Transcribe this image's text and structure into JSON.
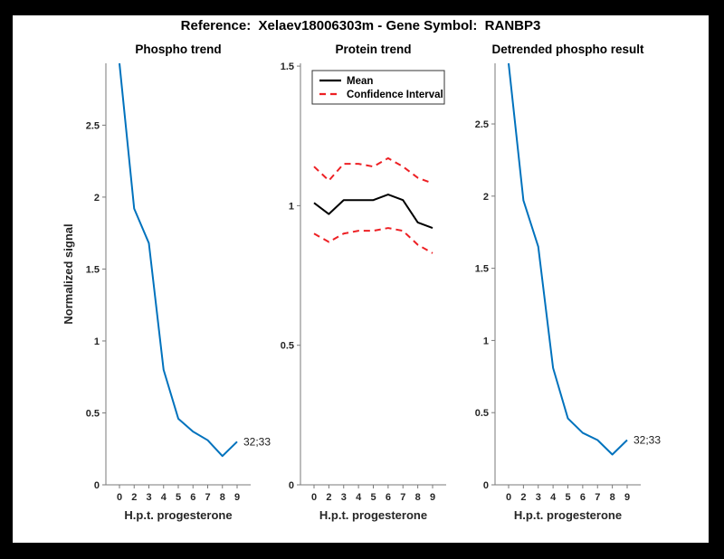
{
  "figure": {
    "title": "Reference:  Xelaev18006303m - Gene Symbol:  RANBP3"
  },
  "colors": {
    "blue": "#0072BD",
    "red": "#ed2024",
    "black": "#000000",
    "axis": "#7a7a7a",
    "tick_label": "#262626"
  },
  "chart_data": [
    {
      "type": "line",
      "title": "Phospho trend",
      "xlabel": "H.p.t. progesterone",
      "ylabel": "Normalized signal",
      "categories": [
        "0",
        "2",
        "3",
        "4",
        "5",
        "6",
        "7",
        "8",
        "9"
      ],
      "xlim_note": "categorical, evenly spaced time points",
      "ylim": [
        0,
        2.93
      ],
      "yticks": [
        0,
        0.5,
        1,
        1.5,
        2,
        2.5
      ],
      "ytick_labels": [
        "0",
        "0.5",
        "1",
        "1.5",
        "2",
        "2.5"
      ],
      "grid": false,
      "series": [
        {
          "name": "Phospho trend",
          "role": "main",
          "color_key": "blue",
          "dash": false,
          "values": [
            2.93,
            1.92,
            1.68,
            0.8,
            0.46,
            0.37,
            0.31,
            0.2,
            0.3
          ]
        }
      ],
      "annotation": {
        "text": "32;33",
        "at_index": 8
      },
      "legend": null
    },
    {
      "type": "line",
      "title": "Protein trend",
      "xlabel": "H.p.t. progesterone",
      "ylabel": null,
      "categories": [
        "0",
        "2",
        "3",
        "4",
        "5",
        "6",
        "7",
        "8",
        "9"
      ],
      "ylim": [
        0,
        1.51
      ],
      "yticks": [
        0,
        0.5,
        1,
        1.5
      ],
      "ytick_labels": [
        "0",
        "0.5",
        "1",
        "1.5"
      ],
      "grid": false,
      "series": [
        {
          "name": "Mean",
          "role": "mean",
          "color_key": "black",
          "dash": false,
          "values": [
            1.01,
            0.97,
            1.02,
            1.02,
            1.02,
            1.04,
            1.02,
            0.94,
            0.92
          ]
        },
        {
          "name": "Confidence Interval upper",
          "role": "ci-upper",
          "color_key": "red",
          "dash": true,
          "values": [
            1.14,
            1.09,
            1.15,
            1.15,
            1.14,
            1.17,
            1.14,
            1.1,
            1.08
          ]
        },
        {
          "name": "Confidence Interval lower",
          "role": "ci-lower",
          "color_key": "red",
          "dash": true,
          "values": [
            0.9,
            0.87,
            0.9,
            0.91,
            0.91,
            0.92,
            0.91,
            0.86,
            0.83
          ]
        }
      ],
      "annotation": null,
      "legend": {
        "position": "upper-left",
        "entries": [
          {
            "label": "Mean",
            "color_key": "black",
            "dash": false
          },
          {
            "label": "Confidence Interval",
            "color_key": "red",
            "dash": true
          }
        ]
      }
    },
    {
      "type": "line",
      "title": "Detrended phospho result",
      "xlabel": "H.p.t. progesterone",
      "ylabel": null,
      "categories": [
        "0",
        "2",
        "3",
        "4",
        "5",
        "6",
        "7",
        "8",
        "9"
      ],
      "ylim": [
        0,
        2.92
      ],
      "yticks": [
        0,
        0.5,
        1,
        1.5,
        2,
        2.5
      ],
      "ytick_labels": [
        "0",
        "0.5",
        "1",
        "1.5",
        "2",
        "2.5"
      ],
      "grid": false,
      "series": [
        {
          "name": "Detrended phospho result",
          "role": "main",
          "color_key": "blue",
          "dash": false,
          "values": [
            2.92,
            1.97,
            1.65,
            0.81,
            0.46,
            0.36,
            0.31,
            0.21,
            0.31
          ]
        }
      ],
      "annotation": {
        "text": "32;33",
        "at_index": 8
      },
      "legend": null
    }
  ]
}
